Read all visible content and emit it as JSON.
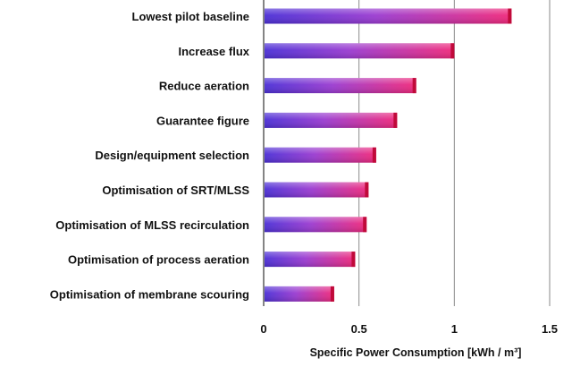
{
  "chart_data": {
    "type": "bar",
    "orientation": "horizontal",
    "title": "",
    "xlabel": "Specific Power Consumption [kWh / m³]",
    "ylabel": "",
    "xlim": [
      0,
      1.5
    ],
    "xticks": [
      "0",
      "0.5",
      "1",
      "1.5"
    ],
    "grid": "vertical",
    "legend": "none",
    "categories": [
      "Lowest pilot baseline",
      "Increase flux",
      "Reduce aeration",
      "Guarantee figure",
      "Design/equipment selection",
      "Optimisation of SRT/MLSS",
      "Optimisation of MLSS recirculation",
      "Optimisation of process aeration",
      "Optimisation of membrane scouring"
    ],
    "values": [
      1.3,
      1.0,
      0.8,
      0.7,
      0.59,
      0.55,
      0.54,
      0.48,
      0.37
    ],
    "colors": {
      "bar_start": "#4b2fd6",
      "bar_mid": "#9a3ad0",
      "bar_end": "#f0287a",
      "bar_edge": "#c00a3a",
      "grid": "#8a8a8a",
      "axis": "#333333"
    }
  }
}
